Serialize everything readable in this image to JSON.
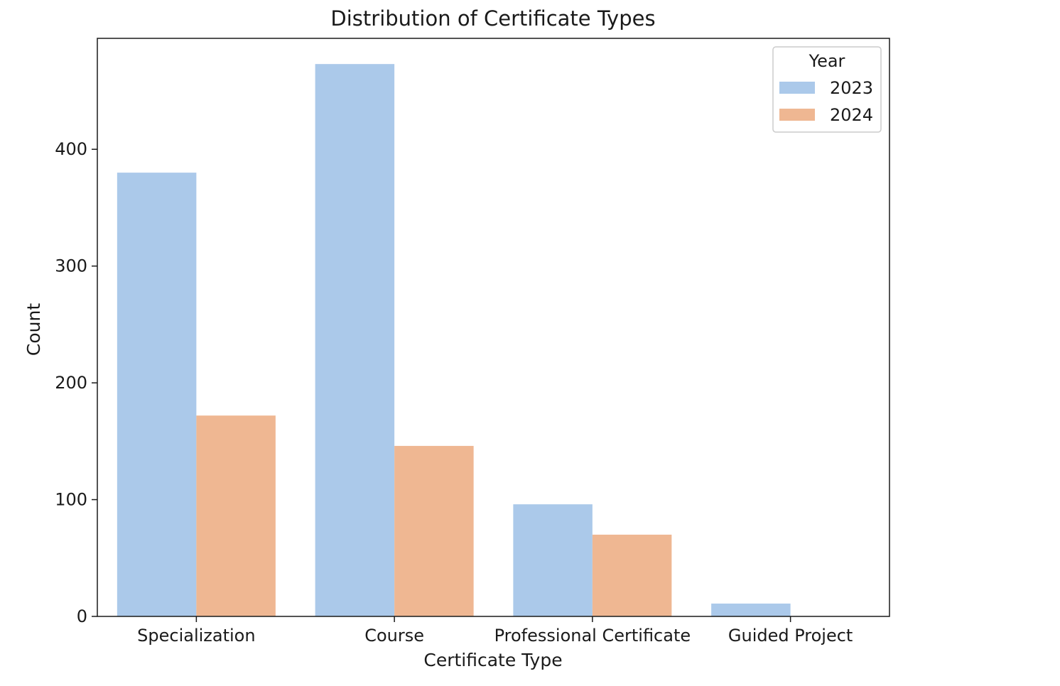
{
  "chart_data": {
    "type": "bar",
    "title": "Distribution of Certificate Types",
    "xlabel": "Certificate Type",
    "ylabel": "Count",
    "categories": [
      "Specialization",
      "Course",
      "Professional Certificate",
      "Guided Project"
    ],
    "series": [
      {
        "name": "2023",
        "color": "#abc9ea",
        "values": [
          380,
          473,
          96,
          11
        ]
      },
      {
        "name": "2024",
        "color": "#efb792",
        "values": [
          172,
          146,
          70,
          0
        ]
      }
    ],
    "ylim": [
      0,
      495
    ],
    "yticks": [
      0,
      100,
      200,
      300,
      400
    ],
    "grid": false,
    "legend": {
      "title": "Year",
      "placement": "top-right"
    }
  }
}
